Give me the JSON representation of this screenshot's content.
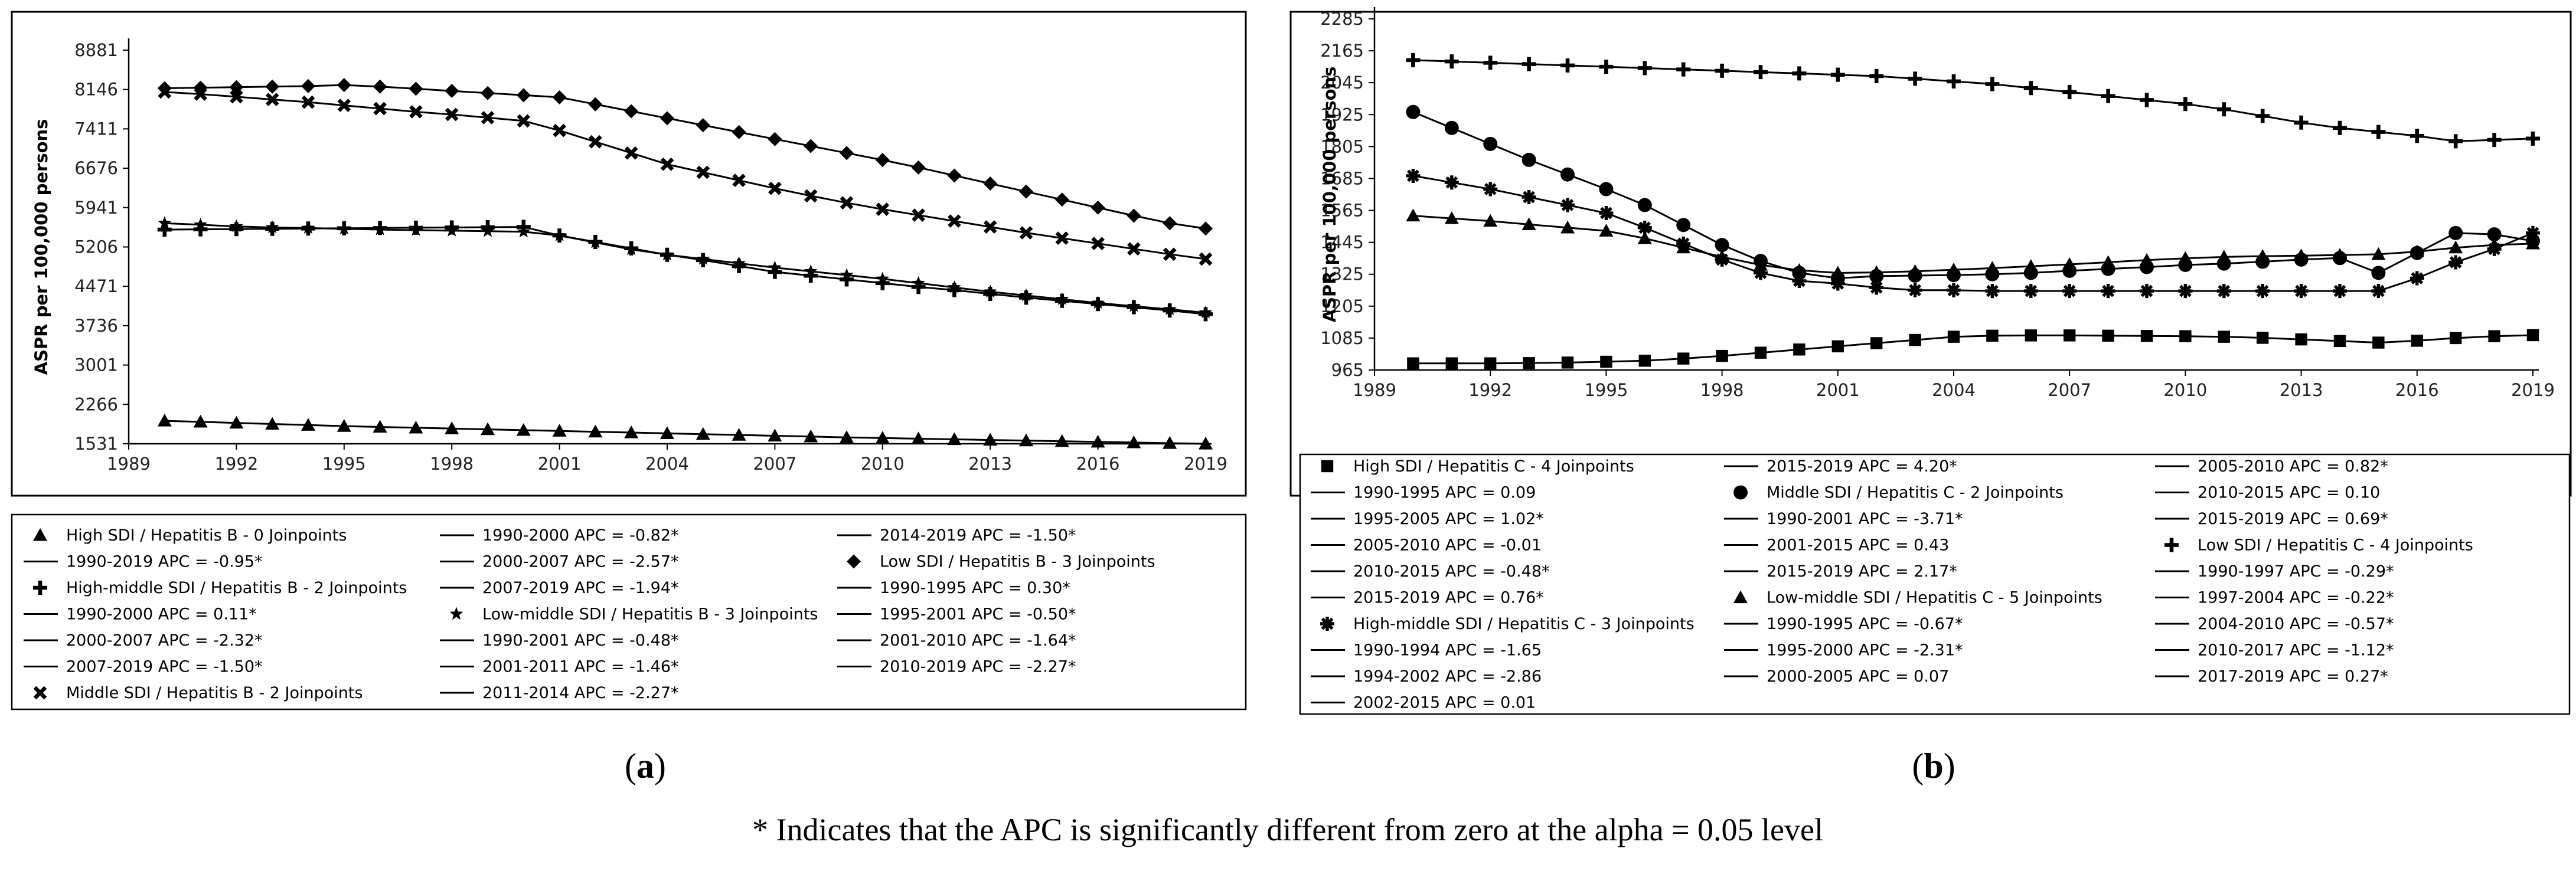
{
  "chart_data": [
    {
      "type": "line",
      "panel": "a",
      "panel_label_pre": "(",
      "panel_label": "a",
      "panel_label_post": ")",
      "ylabel": "ASPR per 100,000 persons",
      "xlim": [
        1989,
        2019
      ],
      "ylim": [
        1531,
        8881
      ],
      "x_ticks": [
        "1989",
        "1992",
        "1995",
        "1998",
        "2001",
        "2004",
        "2007",
        "2010",
        "2013",
        "2016",
        "2019"
      ],
      "y_ticks": [
        "8881",
        "8146",
        "7411",
        "6676",
        "5941",
        "5206",
        "4471",
        "3736",
        "3001",
        "2266",
        "1531"
      ],
      "series": [
        {
          "name": "High SDI / Hepatitis B - 0 Joinpoints",
          "marker": "triangle",
          "x": [
            1990,
            1991,
            1992,
            1993,
            1994,
            1995,
            1996,
            1997,
            1998,
            1999,
            2000,
            2001,
            2002,
            2003,
            2004,
            2005,
            2006,
            2007,
            2008,
            2009,
            2010,
            2011,
            2012,
            2013,
            2014,
            2015,
            2016,
            2017,
            2018,
            2019
          ],
          "values": [
            1960,
            1940,
            1920,
            1900,
            1880,
            1860,
            1845,
            1830,
            1815,
            1800,
            1785,
            1770,
            1755,
            1740,
            1725,
            1710,
            1695,
            1680,
            1665,
            1650,
            1638,
            1626,
            1614,
            1602,
            1590,
            1578,
            1566,
            1554,
            1542,
            1531
          ]
        },
        {
          "name": "High-middle SDI / Hepatitis B - 2 Joinpoints",
          "marker": "plus",
          "x": [
            1990,
            1991,
            1992,
            1993,
            1994,
            1995,
            1996,
            1997,
            1998,
            1999,
            2000,
            2001,
            2002,
            2003,
            2004,
            2005,
            2006,
            2007,
            2008,
            2009,
            2010,
            2011,
            2012,
            2013,
            2014,
            2015,
            2016,
            2017,
            2018,
            2019
          ],
          "values": [
            5530,
            5535,
            5540,
            5545,
            5550,
            5555,
            5560,
            5565,
            5570,
            5575,
            5580,
            5420,
            5300,
            5180,
            5060,
            4960,
            4850,
            4740,
            4670,
            4600,
            4530,
            4460,
            4400,
            4330,
            4260,
            4200,
            4140,
            4080,
            4020,
            3950
          ]
        },
        {
          "name": "Middle SDI / Hepatitis B - 2 Joinpoints",
          "marker": "x",
          "x": [
            1990,
            1991,
            1992,
            1993,
            1994,
            1995,
            1996,
            1997,
            1998,
            1999,
            2000,
            2001,
            2002,
            2003,
            2004,
            2005,
            2006,
            2007,
            2008,
            2009,
            2010,
            2011,
            2012,
            2013,
            2014,
            2015,
            2016,
            2017,
            2018,
            2019
          ],
          "values": [
            8100,
            8060,
            8010,
            7960,
            7910,
            7850,
            7790,
            7730,
            7680,
            7620,
            7560,
            7380,
            7170,
            6960,
            6750,
            6600,
            6450,
            6300,
            6160,
            6030,
            5910,
            5800,
            5690,
            5580,
            5470,
            5370,
            5270,
            5170,
            5070,
            4980
          ]
        },
        {
          "name": "Low-middle SDI / Hepatitis B - 3 Joinpoints",
          "marker": "star",
          "x": [
            1990,
            1991,
            1992,
            1993,
            1994,
            1995,
            1996,
            1997,
            1998,
            1999,
            2000,
            2001,
            2002,
            2003,
            2004,
            2005,
            2006,
            2007,
            2008,
            2009,
            2010,
            2011,
            2012,
            2013,
            2014,
            2015,
            2016,
            2017,
            2018,
            2019
          ],
          "values": [
            5650,
            5620,
            5590,
            5570,
            5560,
            5545,
            5530,
            5520,
            5510,
            5500,
            5490,
            5420,
            5290,
            5160,
            5060,
            4980,
            4900,
            4820,
            4750,
            4680,
            4610,
            4530,
            4450,
            4370,
            4300,
            4230,
            4160,
            4100,
            4040,
            3980
          ]
        },
        {
          "name": "Low SDI / Hepatitis B - 3 Joinpoints",
          "marker": "diamond",
          "x": [
            1990,
            1991,
            1992,
            1993,
            1994,
            1995,
            1996,
            1997,
            1998,
            1999,
            2000,
            2001,
            2002,
            2003,
            2004,
            2005,
            2006,
            2007,
            2008,
            2009,
            2010,
            2011,
            2012,
            2013,
            2014,
            2015,
            2016,
            2017,
            2018,
            2019
          ],
          "values": [
            8170,
            8180,
            8190,
            8200,
            8210,
            8230,
            8200,
            8160,
            8120,
            8080,
            8040,
            8000,
            7870,
            7740,
            7610,
            7480,
            7350,
            7220,
            7090,
            6960,
            6830,
            6690,
            6540,
            6390,
            6240,
            6090,
            5940,
            5790,
            5650,
            5550
          ]
        }
      ],
      "legend": {
        "placement": "below",
        "columns": [
          [
            {
              "text": "High SDI / Hepatitis B - 0 Joinpoints",
              "marker": "triangle"
            },
            {
              "text": "1990-2019 APC  = -0.95*",
              "marker": "line"
            },
            {
              "text": "High-middle SDI / Hepatitis B - 2 Joinpoints",
              "marker": "plus"
            },
            {
              "text": "1990-2000 APC  =  0.11*",
              "marker": "line"
            },
            {
              "text": "2000-2007 APC  = -2.32*",
              "marker": "line"
            },
            {
              "text": "2007-2019 APC  = -1.50*",
              "marker": "line"
            },
            {
              "text": "Middle SDI / Hepatitis B - 2 Joinpoints",
              "marker": "x"
            }
          ],
          [
            {
              "text": "1990-2000 APC  = -0.82*",
              "marker": "line"
            },
            {
              "text": "2000-2007 APC  = -2.57*",
              "marker": "line"
            },
            {
              "text": "2007-2019 APC  = -1.94*",
              "marker": "line"
            },
            {
              "text": "Low-middle SDI / Hepatitis B - 3 Joinpoints",
              "marker": "star"
            },
            {
              "text": "1990-2001 APC  = -0.48*",
              "marker": "line"
            },
            {
              "text": "2001-2011 APC  = -1.46*",
              "marker": "line"
            },
            {
              "text": "2011-2014 APC  = -2.27*",
              "marker": "line"
            }
          ],
          [
            {
              "text": "2014-2019 APC  = -1.50*",
              "marker": "line"
            },
            {
              "text": "Low SDI / Hepatitis B - 3 Joinpoints",
              "marker": "diamond"
            },
            {
              "text": "1990-1995 APC  =  0.30*",
              "marker": "line"
            },
            {
              "text": "1995-2001 APC  = -0.50*",
              "marker": "line"
            },
            {
              "text": "2001-2010 APC  = -1.64*",
              "marker": "line"
            },
            {
              "text": "2010-2019 APC  = -2.27*",
              "marker": "line"
            }
          ]
        ]
      }
    },
    {
      "type": "line",
      "panel": "b",
      "panel_label_pre": "(",
      "panel_label": "b",
      "panel_label_post": ")",
      "ylabel": "ASPR per 100,000 persons",
      "xlim": [
        1989,
        2019
      ],
      "ylim": [
        965,
        2285
      ],
      "x_ticks": [
        "1989",
        "1992",
        "1995",
        "1998",
        "2001",
        "2004",
        "2007",
        "2010",
        "2013",
        "2016",
        "2019"
      ],
      "y_ticks": [
        "2285",
        "2165",
        "2045",
        "1925",
        "1805",
        "1685",
        "1565",
        "1445",
        "1325",
        "1205",
        "1085",
        "965"
      ],
      "series": [
        {
          "name": "High SDI / Hepatitis C - 4 Joinpoints",
          "marker": "square",
          "x": [
            1990,
            1991,
            1992,
            1993,
            1994,
            1995,
            1996,
            1997,
            1998,
            1999,
            2000,
            2001,
            2002,
            2003,
            2004,
            2005,
            2006,
            2007,
            2008,
            2009,
            2010,
            2011,
            2012,
            2013,
            2014,
            2015,
            2016,
            2017,
            2018,
            2019
          ],
          "values": [
            990,
            990,
            990,
            991,
            993,
            996,
            1000,
            1008,
            1018,
            1030,
            1042,
            1054,
            1066,
            1078,
            1090,
            1094,
            1095,
            1095,
            1094,
            1093,
            1092,
            1090,
            1086,
            1080,
            1074,
            1068,
            1075,
            1085,
            1092,
            1096
          ]
        },
        {
          "name": "Middle SDI / Hepatitis C - 2 Joinpoints",
          "marker": "circle",
          "x": [
            1990,
            1991,
            1992,
            1993,
            1994,
            1995,
            1996,
            1997,
            1998,
            1999,
            2000,
            2001,
            2002,
            2003,
            2004,
            2005,
            2006,
            2007,
            2008,
            2009,
            2010,
            2011,
            2012,
            2013,
            2014,
            2015,
            2016,
            2017,
            2018,
            2019
          ],
          "values": [
            1935,
            1875,
            1815,
            1755,
            1700,
            1645,
            1585,
            1510,
            1435,
            1375,
            1330,
            1310,
            1318,
            1320,
            1322,
            1325,
            1330,
            1338,
            1345,
            1352,
            1360,
            1365,
            1372,
            1380,
            1386,
            1330,
            1405,
            1480,
            1475,
            1450
          ]
        },
        {
          "name": "High-middle SDI / Hepatitis C - 3 Joinpoints",
          "marker": "asterisk",
          "x": [
            1990,
            1991,
            1992,
            1993,
            1994,
            1995,
            1996,
            1997,
            1998,
            1999,
            2000,
            2001,
            2002,
            2003,
            2004,
            2005,
            2006,
            2007,
            2008,
            2009,
            2010,
            2011,
            2012,
            2013,
            2014,
            2015,
            2016,
            2017,
            2018,
            2019
          ],
          "values": [
            1695,
            1670,
            1645,
            1615,
            1585,
            1555,
            1500,
            1440,
            1380,
            1330,
            1300,
            1290,
            1275,
            1265,
            1265,
            1262,
            1262,
            1262,
            1262,
            1262,
            1262,
            1262,
            1262,
            1262,
            1262,
            1262,
            1310,
            1370,
            1420,
            1480
          ]
        },
        {
          "name": "Low SDI / Hepatitis C - 4 Joinpoints",
          "marker": "plus",
          "x": [
            1990,
            1991,
            1992,
            1993,
            1994,
            1995,
            1996,
            1997,
            1998,
            1999,
            2000,
            2001,
            2002,
            2003,
            2004,
            2005,
            2006,
            2007,
            2008,
            2009,
            2010,
            2011,
            2012,
            2013,
            2014,
            2015,
            2016,
            2017,
            2018,
            2019
          ],
          "values": [
            2130,
            2125,
            2120,
            2115,
            2110,
            2105,
            2100,
            2095,
            2090,
            2085,
            2080,
            2075,
            2070,
            2060,
            2050,
            2040,
            2025,
            2010,
            1995,
            1980,
            1965,
            1945,
            1920,
            1895,
            1875,
            1860,
            1845,
            1825,
            1830,
            1835
          ]
        },
        {
          "name": "Low-middle SDI / Hepatitis C - 5 Joinpoints",
          "marker": "triangle",
          "x": [
            1990,
            1991,
            1992,
            1993,
            1994,
            1995,
            1996,
            1997,
            1998,
            1999,
            2000,
            2001,
            2002,
            2003,
            2004,
            2005,
            2006,
            2007,
            2008,
            2009,
            2010,
            2011,
            2012,
            2013,
            2014,
            2015,
            2016,
            2017,
            2018,
            2019
          ],
          "values": [
            1545,
            1535,
            1525,
            1512,
            1500,
            1488,
            1460,
            1425,
            1390,
            1360,
            1340,
            1330,
            1332,
            1336,
            1342,
            1348,
            1355,
            1362,
            1370,
            1378,
            1385,
            1390,
            1393,
            1395,
            1397,
            1400,
            1410,
            1425,
            1435,
            1440
          ]
        }
      ],
      "legend": {
        "placement": "below",
        "columns": [
          [
            {
              "text": "High SDI / Hepatitis C - 4 Joinpoints",
              "marker": "square"
            },
            {
              "text": "1990-1995 APC  =  0.09",
              "marker": "line"
            },
            {
              "text": "1995-2005 APC  =  1.02*",
              "marker": "line"
            },
            {
              "text": "2005-2010 APC  = -0.01",
              "marker": "line"
            },
            {
              "text": "2010-2015 APC  = -0.48*",
              "marker": "line"
            },
            {
              "text": "2015-2019 APC  =  0.76*",
              "marker": "line"
            },
            {
              "text": "High-middle SDI / Hepatitis C - 3 Joinpoints",
              "marker": "asterisk"
            },
            {
              "text": "1990-1994 APC  = -1.65",
              "marker": "line"
            },
            {
              "text": "1994-2002 APC  = -2.86",
              "marker": "line"
            },
            {
              "text": "2002-2015 APC  =  0.01",
              "marker": "line"
            }
          ],
          [
            {
              "text": "2015-2019 APC  =  4.20*",
              "marker": "line"
            },
            {
              "text": "Middle SDI / Hepatitis C - 2 Joinpoints",
              "marker": "circle"
            },
            {
              "text": "1990-2001 APC  = -3.71*",
              "marker": "line"
            },
            {
              "text": "2001-2015 APC  =  0.43",
              "marker": "line"
            },
            {
              "text": "2015-2019 APC  =  2.17*",
              "marker": "line"
            },
            {
              "text": "Low-middle SDI / Hepatitis C - 5 Joinpoints",
              "marker": "triangle"
            },
            {
              "text": "1990-1995 APC  = -0.67*",
              "marker": "line"
            },
            {
              "text": "1995-2000 APC  = -2.31*",
              "marker": "line"
            },
            {
              "text": "2000-2005 APC  =  0.07",
              "marker": "line"
            }
          ],
          [
            {
              "text": "2005-2010 APC  =  0.82*",
              "marker": "line"
            },
            {
              "text": "2010-2015 APC  =  0.10",
              "marker": "line"
            },
            {
              "text": "2015-2019 APC  =  0.69*",
              "marker": "line"
            },
            {
              "text": "Low SDI / Hepatitis C - 4 Joinpoints",
              "marker": "plus"
            },
            {
              "text": "1990-1997 APC  = -0.29*",
              "marker": "line"
            },
            {
              "text": "1997-2004 APC  = -0.22*",
              "marker": "line"
            },
            {
              "text": "2004-2010 APC  = -0.57*",
              "marker": "line"
            },
            {
              "text": "2010-2017 APC  = -1.12*",
              "marker": "line"
            },
            {
              "text": "2017-2019 APC  =  0.27*",
              "marker": "line"
            }
          ]
        ]
      }
    }
  ],
  "footnote": "* Indicates that the APC is significantly different from zero at the alpha = 0.05 level"
}
